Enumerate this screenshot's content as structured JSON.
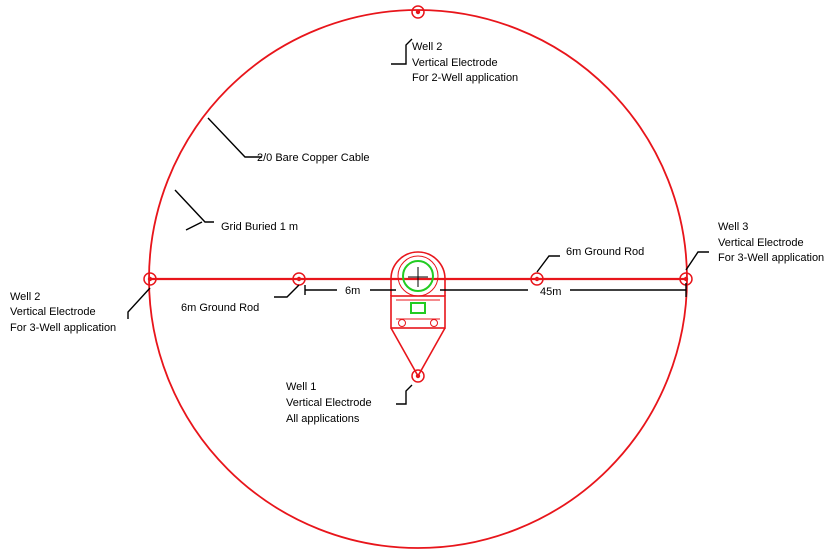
{
  "labels": {
    "well2_top": [
      "Well 2",
      "Vertical Electrode",
      "For 2-Well application"
    ],
    "cable": "2/0 Bare Copper Cable",
    "grid_buried": "Grid Buried 1 m",
    "well3": [
      "Well 3",
      "Vertical Electrode",
      "For 3-Well application"
    ],
    "well2_left": [
      "Well 2",
      "Vertical Electrode",
      "For 3-Well application"
    ],
    "ground_rod_left": "6m Ground Rod",
    "ground_rod_right": "6m Ground Rod",
    "dim_6m": "6m",
    "dim_45m": "45m",
    "well1": [
      "Well 1",
      "Vertical Electrode",
      "All applications"
    ]
  },
  "colors": {
    "electrode_red": "#e8151b",
    "equipment_green": "#22cc22",
    "annotation": "#000000"
  }
}
